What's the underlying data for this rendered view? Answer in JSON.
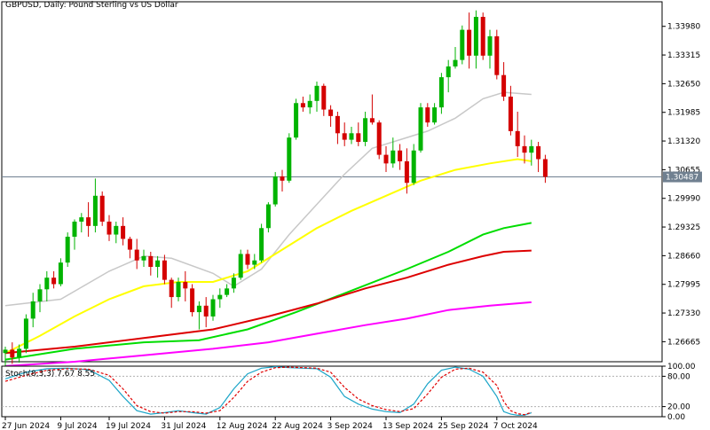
{
  "chart_data": {
    "type": "candlestick",
    "title": "GBPUSD, Daily:  Pound Sterling vs US Dollar",
    "current_price_label": "1.30487",
    "current_price": 1.30487,
    "ylim": [
      1.262,
      1.3455
    ],
    "yticks": [
      "1.33980",
      "1.33315",
      "1.32650",
      "1.31985",
      "1.31320",
      "1.30655",
      "1.29990",
      "1.29325",
      "1.28660",
      "1.27995",
      "1.27330",
      "1.26665"
    ],
    "x_tick_labels": [
      "27 Jun 2024",
      "9 Jul 2024",
      "19 Jul 2024",
      "31 Jul 2024",
      "12 Aug 2024",
      "22 Aug 2024",
      "3 Sep 2024",
      "13 Sep 2024",
      "25 Sep 2024",
      "7 Oct 2024"
    ],
    "x_tick_index": [
      0,
      8,
      15,
      23,
      31,
      39,
      47,
      55,
      63,
      71
    ],
    "candles": [
      [
        1.264,
        1.2655,
        1.261,
        1.2648
      ],
      [
        1.2648,
        1.2665,
        1.2615,
        1.263
      ],
      [
        1.263,
        1.266,
        1.2618,
        1.265
      ],
      [
        1.265,
        1.273,
        1.264,
        1.272
      ],
      [
        1.272,
        1.278,
        1.27,
        1.276
      ],
      [
        1.276,
        1.28,
        1.2735,
        1.2788
      ],
      [
        1.2788,
        1.283,
        1.276,
        1.2815
      ],
      [
        1.2815,
        1.283,
        1.279,
        1.28
      ],
      [
        1.28,
        1.286,
        1.2795,
        1.285
      ],
      [
        1.285,
        1.292,
        1.284,
        1.291
      ],
      [
        1.291,
        1.295,
        1.288,
        1.2945
      ],
      [
        1.2945,
        1.2965,
        1.292,
        1.2955
      ],
      [
        1.2955,
        1.299,
        1.291,
        1.2935
      ],
      [
        1.2935,
        1.3045,
        1.292,
        1.3005
      ],
      [
        1.3005,
        1.3015,
        1.2935,
        1.2945
      ],
      [
        1.2945,
        1.296,
        1.29,
        1.2915
      ],
      [
        1.2915,
        1.2945,
        1.2895,
        1.2935
      ],
      [
        1.2935,
        1.2955,
        1.289,
        1.2905
      ],
      [
        1.2905,
        1.291,
        1.286,
        1.288
      ],
      [
        1.288,
        1.2905,
        1.2835,
        1.2855
      ],
      [
        1.2855,
        1.288,
        1.284,
        1.2865
      ],
      [
        1.2865,
        1.2875,
        1.282,
        1.284
      ],
      [
        1.284,
        1.2865,
        1.2815,
        1.2855
      ],
      [
        1.2855,
        1.2868,
        1.28,
        1.281
      ],
      [
        1.281,
        1.2815,
        1.2745,
        1.277
      ],
      [
        1.277,
        1.2815,
        1.276,
        1.2805
      ],
      [
        1.2805,
        1.283,
        1.276,
        1.279
      ],
      [
        1.279,
        1.28,
        1.2725,
        1.2735
      ],
      [
        1.2735,
        1.276,
        1.2695,
        1.275
      ],
      [
        1.275,
        1.277,
        1.27,
        1.2725
      ],
      [
        1.2725,
        1.2775,
        1.2715,
        1.2765
      ],
      [
        1.2765,
        1.279,
        1.2745,
        1.2775
      ],
      [
        1.2775,
        1.28,
        1.277,
        1.279
      ],
      [
        1.279,
        1.2825,
        1.278,
        1.2815
      ],
      [
        1.2815,
        1.288,
        1.281,
        1.287
      ],
      [
        1.287,
        1.288,
        1.2835,
        1.2845
      ],
      [
        1.2845,
        1.287,
        1.2835,
        1.2855
      ],
      [
        1.2855,
        1.294,
        1.285,
        1.293
      ],
      [
        1.293,
        1.299,
        1.292,
        1.2985
      ],
      [
        1.2985,
        1.306,
        1.298,
        1.305
      ],
      [
        1.305,
        1.3065,
        1.3015,
        1.304
      ],
      [
        1.304,
        1.315,
        1.3035,
        1.314
      ],
      [
        1.314,
        1.323,
        1.3135,
        1.322
      ],
      [
        1.322,
        1.3235,
        1.32,
        1.321
      ],
      [
        1.321,
        1.324,
        1.3195,
        1.3225
      ],
      [
        1.3225,
        1.327,
        1.32,
        1.326
      ],
      [
        1.326,
        1.3265,
        1.319,
        1.3205
      ],
      [
        1.3205,
        1.3215,
        1.3165,
        1.319
      ],
      [
        1.319,
        1.32,
        1.3125,
        1.315
      ],
      [
        1.315,
        1.3175,
        1.312,
        1.3135
      ],
      [
        1.3135,
        1.3165,
        1.3125,
        1.315
      ],
      [
        1.315,
        1.3175,
        1.312,
        1.313
      ],
      [
        1.313,
        1.32,
        1.312,
        1.3185
      ],
      [
        1.3185,
        1.324,
        1.317,
        1.3175
      ],
      [
        1.3175,
        1.318,
        1.309,
        1.31
      ],
      [
        1.31,
        1.312,
        1.306,
        1.308
      ],
      [
        1.308,
        1.314,
        1.307,
        1.311
      ],
      [
        1.311,
        1.3125,
        1.3065,
        1.3085
      ],
      [
        1.3085,
        1.3115,
        1.301,
        1.3035
      ],
      [
        1.3035,
        1.3125,
        1.303,
        1.311
      ],
      [
        1.311,
        1.322,
        1.3105,
        1.321
      ],
      [
        1.321,
        1.322,
        1.3165,
        1.3175
      ],
      [
        1.3175,
        1.322,
        1.317,
        1.321
      ],
      [
        1.321,
        1.329,
        1.3195,
        1.328
      ],
      [
        1.328,
        1.332,
        1.3245,
        1.3305
      ],
      [
        1.3305,
        1.335,
        1.33,
        1.332
      ],
      [
        1.332,
        1.34,
        1.331,
        1.339
      ],
      [
        1.339,
        1.343,
        1.33,
        1.333
      ],
      [
        1.333,
        1.3435,
        1.33,
        1.342
      ],
      [
        1.342,
        1.343,
        1.332,
        1.333
      ],
      [
        1.333,
        1.339,
        1.33,
        1.3375
      ],
      [
        1.3375,
        1.339,
        1.3275,
        1.3285
      ],
      [
        1.3285,
        1.3315,
        1.3225,
        1.3235
      ],
      [
        1.3235,
        1.326,
        1.3145,
        1.3155
      ],
      [
        1.3155,
        1.32,
        1.3095,
        1.312
      ],
      [
        1.312,
        1.3145,
        1.308,
        1.3105
      ],
      [
        1.3105,
        1.3135,
        1.3075,
        1.312
      ],
      [
        1.312,
        1.313,
        1.306,
        1.309
      ],
      [
        1.309,
        1.31,
        1.3035,
        1.3049
      ]
    ],
    "ma_series": [
      {
        "color": "#c8c8c8",
        "points": [
          [
            0,
            1.275
          ],
          [
            8,
            1.2765
          ],
          [
            15,
            1.283
          ],
          [
            20,
            1.2865
          ],
          [
            24,
            1.286
          ],
          [
            30,
            1.2825
          ],
          [
            33,
            1.2795
          ],
          [
            37,
            1.2835
          ],
          [
            41,
            1.2915
          ],
          [
            45,
            1.2985
          ],
          [
            49,
            1.3055
          ],
          [
            53,
            1.3115
          ],
          [
            57,
            1.3135
          ],
          [
            61,
            1.3155
          ],
          [
            65,
            1.3185
          ],
          [
            69,
            1.323
          ],
          [
            72,
            1.3245
          ],
          [
            76,
            1.324
          ]
        ]
      },
      {
        "color": "#ffff00",
        "points": [
          [
            0,
            1.264
          ],
          [
            5,
            1.268
          ],
          [
            10,
            1.2725
          ],
          [
            15,
            1.2765
          ],
          [
            20,
            1.2795
          ],
          [
            25,
            1.2805
          ],
          [
            30,
            1.2805
          ],
          [
            35,
            1.283
          ],
          [
            40,
            1.288
          ],
          [
            45,
            1.293
          ],
          [
            50,
            1.297
          ],
          [
            55,
            1.3005
          ],
          [
            60,
            1.304
          ],
          [
            65,
            1.3065
          ],
          [
            70,
            1.308
          ],
          [
            74,
            1.309
          ],
          [
            76,
            1.3085
          ]
        ]
      },
      {
        "color": "#00dd00",
        "points": [
          [
            0,
            1.2625
          ],
          [
            10,
            1.265
          ],
          [
            20,
            1.2665
          ],
          [
            28,
            1.267
          ],
          [
            35,
            1.2695
          ],
          [
            42,
            1.2735
          ],
          [
            50,
            1.2785
          ],
          [
            58,
            1.2835
          ],
          [
            64,
            1.2875
          ],
          [
            69,
            1.2915
          ],
          [
            72,
            1.293
          ],
          [
            76,
            1.2942
          ]
        ]
      },
      {
        "color": "#dd0000",
        "points": [
          [
            0,
            1.264
          ],
          [
            10,
            1.2655
          ],
          [
            20,
            1.2675
          ],
          [
            30,
            1.2695
          ],
          [
            38,
            1.2725
          ],
          [
            45,
            1.2755
          ],
          [
            52,
            1.279
          ],
          [
            58,
            1.2815
          ],
          [
            64,
            1.2845
          ],
          [
            69,
            1.2865
          ],
          [
            72,
            1.2875
          ],
          [
            76,
            1.2878
          ]
        ]
      },
      {
        "color": "#ff00ff",
        "points": [
          [
            0,
            1.261
          ],
          [
            10,
            1.262
          ],
          [
            20,
            1.2635
          ],
          [
            30,
            1.265
          ],
          [
            38,
            1.2665
          ],
          [
            45,
            1.2685
          ],
          [
            52,
            1.2705
          ],
          [
            58,
            1.272
          ],
          [
            64,
            1.274
          ],
          [
            70,
            1.275
          ],
          [
            76,
            1.2758
          ]
        ]
      }
    ],
    "stochastic": {
      "label": "Stoch(8,3,3) 7.67 8.55",
      "ylim": [
        0,
        100
      ],
      "levels": [
        20,
        80
      ],
      "ytick_labels": [
        "100.00",
        "80.00",
        "20.00",
        "0.00"
      ],
      "ytick_values": [
        100,
        80,
        20,
        0
      ],
      "main": [
        [
          0,
          75
        ],
        [
          3,
          88
        ],
        [
          6,
          95
        ],
        [
          9,
          96
        ],
        [
          12,
          93
        ],
        [
          15,
          72
        ],
        [
          17,
          40
        ],
        [
          19,
          12
        ],
        [
          21,
          5
        ],
        [
          23,
          8
        ],
        [
          25,
          12
        ],
        [
          27,
          8
        ],
        [
          29,
          5
        ],
        [
          31,
          18
        ],
        [
          33,
          55
        ],
        [
          35,
          85
        ],
        [
          37,
          96
        ],
        [
          39,
          99
        ],
        [
          41,
          97
        ],
        [
          43,
          96
        ],
        [
          45,
          95
        ],
        [
          47,
          78
        ],
        [
          49,
          40
        ],
        [
          51,
          25
        ],
        [
          53,
          15
        ],
        [
          55,
          10
        ],
        [
          57,
          8
        ],
        [
          59,
          25
        ],
        [
          61,
          65
        ],
        [
          63,
          92
        ],
        [
          65,
          98
        ],
        [
          67,
          94
        ],
        [
          69,
          80
        ],
        [
          71,
          40
        ],
        [
          72,
          10
        ],
        [
          73,
          5
        ],
        [
          74,
          3
        ],
        [
          75,
          3
        ],
        [
          76,
          7.67
        ]
      ],
      "signal": [
        [
          0,
          70
        ],
        [
          3,
          82
        ],
        [
          6,
          92
        ],
        [
          9,
          95
        ],
        [
          12,
          94
        ],
        [
          15,
          82
        ],
        [
          17,
          55
        ],
        [
          19,
          22
        ],
        [
          21,
          10
        ],
        [
          23,
          7
        ],
        [
          25,
          10
        ],
        [
          27,
          10
        ],
        [
          29,
          7
        ],
        [
          31,
          12
        ],
        [
          33,
          38
        ],
        [
          35,
          70
        ],
        [
          37,
          88
        ],
        [
          39,
          97
        ],
        [
          41,
          98
        ],
        [
          43,
          97
        ],
        [
          45,
          96
        ],
        [
          47,
          88
        ],
        [
          49,
          58
        ],
        [
          51,
          35
        ],
        [
          53,
          22
        ],
        [
          55,
          14
        ],
        [
          57,
          10
        ],
        [
          59,
          16
        ],
        [
          61,
          45
        ],
        [
          63,
          78
        ],
        [
          65,
          94
        ],
        [
          67,
          96
        ],
        [
          69,
          88
        ],
        [
          71,
          62
        ],
        [
          72,
          30
        ],
        [
          73,
          12
        ],
        [
          74,
          6
        ],
        [
          75,
          4
        ],
        [
          76,
          8.55
        ]
      ]
    }
  }
}
